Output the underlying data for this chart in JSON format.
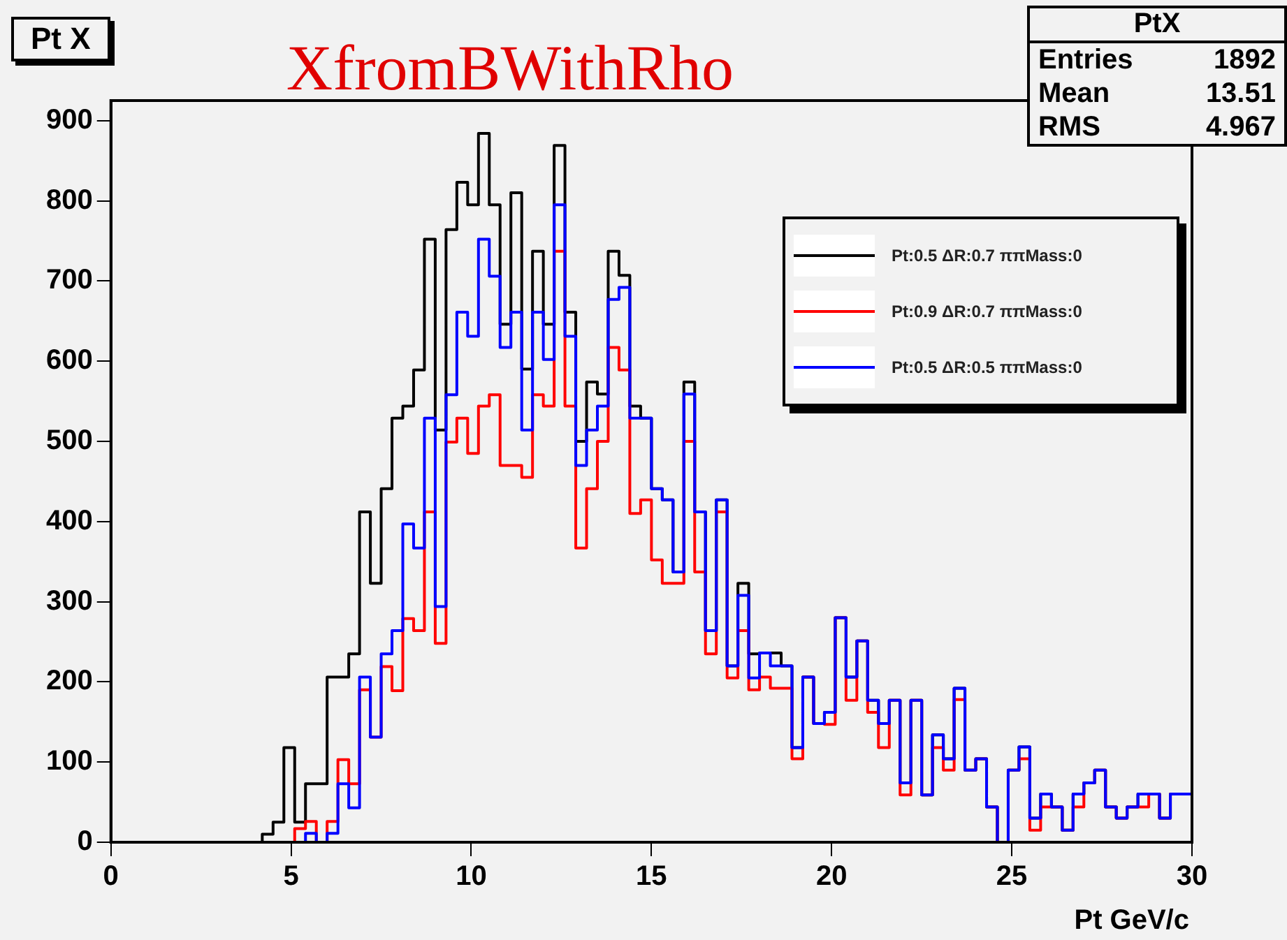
{
  "chart_data": {
    "type": "histogram",
    "title": "XfromBWithRho",
    "xlabel": "Pt GeV/c",
    "annotations": [
      "Pt X",
      "PtX",
      "Entries",
      "1892",
      "Mean",
      "13.51",
      "RMS",
      "4.967"
    ],
    "bins": [
      0,
      0.3,
      0.6,
      0.9,
      1.2,
      1.5,
      1.8,
      2.1,
      2.4,
      2.7,
      3,
      3.3,
      3.6,
      3.9,
      4.2,
      4.5,
      4.8,
      5.1,
      5.4,
      5.7,
      6,
      6.3,
      6.6,
      6.9,
      7.2,
      7.5,
      7.8,
      8.1,
      8.4,
      8.7,
      9,
      9.3,
      9.6,
      9.9,
      10.2,
      10.5,
      10.8,
      11.1,
      11.4,
      11.7,
      12,
      12.3,
      12.6,
      12.9,
      13.2,
      13.5,
      13.8,
      14.1,
      14.4,
      14.7,
      15,
      15.3,
      15.6,
      15.9,
      16.2,
      16.5,
      16.8,
      17.1,
      17.4,
      17.7,
      18,
      18.3,
      18.6,
      18.9,
      19.2,
      19.5,
      19.8,
      20.1,
      20.4,
      20.7,
      21,
      21.3,
      21.6,
      21.9,
      22.2,
      22.5,
      22.8,
      23.1,
      23.4,
      23.7,
      24,
      24.3,
      24.6,
      24.9,
      25.2,
      25.5,
      25.8,
      26.1,
      26.4,
      26.7,
      27,
      27.3,
      27.6,
      27.9,
      28.2,
      28.5,
      28.8,
      29.1,
      29.4,
      29.7,
      30
    ],
    "series": [
      {
        "name": "Pt:0.5 ΔR:0.7 ππMass:0",
        "color": "#000000",
        "values": [
          0,
          0,
          0,
          0,
          0,
          0,
          0,
          0,
          0,
          0,
          0,
          0,
          0,
          0,
          10,
          25,
          118,
          25,
          73,
          73,
          206,
          206,
          235,
          412,
          323,
          441,
          529,
          544,
          589,
          752,
          514,
          764,
          823,
          795,
          884,
          795,
          646,
          810,
          590,
          737,
          646,
          869,
          661,
          500,
          574,
          559,
          737,
          707,
          544,
          529,
          441,
          427,
          337,
          574,
          412,
          264,
          427,
          220,
          323,
          235,
          236,
          236,
          220,
          118,
          206,
          148,
          162,
          280,
          206,
          251,
          177,
          148,
          177,
          74,
          177,
          59,
          134,
          104,
          192,
          90,
          104,
          44,
          0,
          90,
          119,
          30,
          60,
          44,
          15,
          60,
          74,
          90,
          44,
          30,
          44,
          60,
          60,
          30,
          60,
          60
        ]
      },
      {
        "name": "Pt:0.9 ΔR:0.7 ππMass:0",
        "color": "#ff0000",
        "values": [
          0,
          0,
          0,
          0,
          0,
          0,
          0,
          0,
          0,
          0,
          0,
          0,
          0,
          0,
          0,
          0,
          0,
          17,
          26,
          0,
          26,
          103,
          73,
          190,
          131,
          219,
          189,
          279,
          264,
          412,
          248,
          499,
          529,
          485,
          544,
          558,
          470,
          470,
          455,
          558,
          544,
          737,
          544,
          367,
          441,
          500,
          617,
          589,
          410,
          427,
          352,
          323,
          323,
          500,
          337,
          235,
          412,
          205,
          264,
          190,
          206,
          192,
          192,
          104,
          206,
          148,
          147,
          280,
          177,
          251,
          162,
          118,
          177,
          59,
          177,
          59,
          118,
          90,
          178,
          90,
          104,
          44,
          0,
          90,
          104,
          15,
          44,
          44,
          15,
          44,
          74,
          90,
          44,
          30,
          44,
          44,
          60,
          30,
          60,
          60
        ]
      },
      {
        "name": "Pt:0.5 ΔR:0.5 ππMass:0",
        "color": "#0000ff",
        "values": [
          0,
          0,
          0,
          0,
          0,
          0,
          0,
          0,
          0,
          0,
          0,
          0,
          0,
          0,
          0,
          0,
          0,
          0,
          11,
          0,
          11,
          73,
          43,
          206,
          131,
          235,
          264,
          397,
          367,
          529,
          294,
          558,
          661,
          631,
          752,
          706,
          617,
          661,
          514,
          661,
          602,
          795,
          631,
          470,
          514,
          544,
          677,
          692,
          529,
          529,
          441,
          427,
          337,
          559,
          412,
          264,
          427,
          220,
          308,
          205,
          236,
          220,
          220,
          118,
          206,
          148,
          162,
          280,
          206,
          251,
          177,
          148,
          177,
          74,
          177,
          59,
          134,
          104,
          192,
          90,
          104,
          44,
          0,
          90,
          119,
          30,
          60,
          44,
          15,
          60,
          74,
          90,
          44,
          30,
          44,
          60,
          60,
          30,
          60,
          60
        ]
      }
    ],
    "xlim": [
      0,
      30
    ],
    "xticks": [
      0,
      5,
      10,
      15,
      20,
      25,
      30
    ],
    "ylim": [
      0,
      925
    ],
    "yticks": [
      0,
      100,
      200,
      300,
      400,
      500,
      600,
      700,
      800,
      900
    ],
    "grid": false,
    "legend": "top right"
  }
}
